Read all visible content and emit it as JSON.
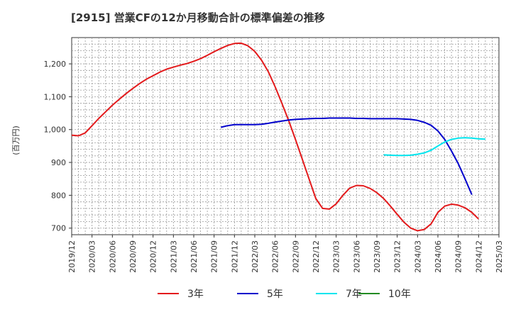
{
  "chart_data": {
    "type": "line",
    "title": "[2915]  営業CFの12か月移動合計の標準偏差の推移",
    "ylabel": "(百万円)",
    "xlabel": "",
    "ylim": [
      680,
      1280
    ],
    "yticks": [
      700,
      800,
      900,
      1000,
      1100,
      1200
    ],
    "ytick_labels": [
      "700",
      "800",
      "900",
      "1,000",
      "1,100",
      "1,200"
    ],
    "xrange": [
      "2019-12",
      "2025-03"
    ],
    "xtick_labels": [
      "2019/12",
      "2020/03",
      "2020/06",
      "2020/09",
      "2020/12",
      "2021/03",
      "2021/06",
      "2021/09",
      "2021/12",
      "2022/03",
      "2022/06",
      "2022/09",
      "2022/12",
      "2023/03",
      "2023/06",
      "2023/09",
      "2023/12",
      "2024/03",
      "2024/06",
      "2024/09",
      "2024/12",
      "2025/03"
    ],
    "grid": true,
    "legend_position": "bottom",
    "series": [
      {
        "name": "3年",
        "color": "#e31a1c",
        "points": [
          [
            "2019-12",
            983
          ],
          [
            "2020-01",
            981
          ],
          [
            "2020-02",
            990
          ],
          [
            "2020-03",
            1012
          ],
          [
            "2020-04",
            1034
          ],
          [
            "2020-05",
            1054
          ],
          [
            "2020-06",
            1074
          ],
          [
            "2020-07",
            1092
          ],
          [
            "2020-08",
            1109
          ],
          [
            "2020-09",
            1125
          ],
          [
            "2020-10",
            1140
          ],
          [
            "2020-11",
            1153
          ],
          [
            "2020-12",
            1164
          ],
          [
            "2021-01",
            1175
          ],
          [
            "2021-02",
            1184
          ],
          [
            "2021-03",
            1190
          ],
          [
            "2021-04",
            1196
          ],
          [
            "2021-05",
            1201
          ],
          [
            "2021-06",
            1208
          ],
          [
            "2021-07",
            1216
          ],
          [
            "2021-08",
            1226
          ],
          [
            "2021-09",
            1237
          ],
          [
            "2021-10",
            1247
          ],
          [
            "2021-11",
            1256
          ],
          [
            "2021-12",
            1262
          ],
          [
            "2022-01",
            1263
          ],
          [
            "2022-02",
            1255
          ],
          [
            "2022-03",
            1238
          ],
          [
            "2022-04",
            1211
          ],
          [
            "2022-05",
            1176
          ],
          [
            "2022-06",
            1130
          ],
          [
            "2022-07",
            1080
          ],
          [
            "2022-08",
            1027
          ],
          [
            "2022-09",
            970
          ],
          [
            "2022-10",
            910
          ],
          [
            "2022-11",
            850
          ],
          [
            "2022-12",
            790
          ],
          [
            "2023-01",
            760
          ],
          [
            "2023-02",
            758
          ],
          [
            "2023-03",
            774
          ],
          [
            "2023-04",
            800
          ],
          [
            "2023-05",
            822
          ],
          [
            "2023-06",
            830
          ],
          [
            "2023-07",
            829
          ],
          [
            "2023-08",
            821
          ],
          [
            "2023-09",
            808
          ],
          [
            "2023-10",
            790
          ],
          [
            "2023-11",
            767
          ],
          [
            "2023-12",
            742
          ],
          [
            "2024-01",
            718
          ],
          [
            "2024-02",
            700
          ],
          [
            "2024-03",
            692
          ],
          [
            "2024-04",
            696
          ],
          [
            "2024-05",
            713
          ],
          [
            "2024-06",
            748
          ],
          [
            "2024-07",
            767
          ],
          [
            "2024-08",
            773
          ],
          [
            "2024-09",
            770
          ],
          [
            "2024-10",
            762
          ],
          [
            "2024-11",
            748
          ],
          [
            "2024-12",
            728
          ]
        ]
      },
      {
        "name": "5年",
        "color": "#0000cc",
        "points": [
          [
            "2021-10",
            1007
          ],
          [
            "2021-11",
            1012
          ],
          [
            "2021-12",
            1015
          ],
          [
            "2022-01",
            1015
          ],
          [
            "2022-02",
            1015
          ],
          [
            "2022-03",
            1015
          ],
          [
            "2022-04",
            1016
          ],
          [
            "2022-05",
            1019
          ],
          [
            "2022-06",
            1023
          ],
          [
            "2022-07",
            1026
          ],
          [
            "2022-08",
            1029
          ],
          [
            "2022-09",
            1031
          ],
          [
            "2022-10",
            1032
          ],
          [
            "2022-11",
            1033
          ],
          [
            "2022-12",
            1034
          ],
          [
            "2023-01",
            1034
          ],
          [
            "2023-02",
            1035
          ],
          [
            "2023-03",
            1035
          ],
          [
            "2023-04",
            1035
          ],
          [
            "2023-05",
            1035
          ],
          [
            "2023-06",
            1034
          ],
          [
            "2023-07",
            1034
          ],
          [
            "2023-08",
            1033
          ],
          [
            "2023-09",
            1033
          ],
          [
            "2023-10",
            1033
          ],
          [
            "2023-11",
            1033
          ],
          [
            "2023-12",
            1033
          ],
          [
            "2024-01",
            1032
          ],
          [
            "2024-02",
            1031
          ],
          [
            "2024-03",
            1028
          ],
          [
            "2024-04",
            1022
          ],
          [
            "2024-05",
            1013
          ],
          [
            "2024-06",
            996
          ],
          [
            "2024-07",
            970
          ],
          [
            "2024-08",
            935
          ],
          [
            "2024-09",
            896
          ],
          [
            "2024-10",
            850
          ],
          [
            "2024-11",
            802
          ]
        ]
      },
      {
        "name": "7年",
        "color": "#00e5ee",
        "points": [
          [
            "2023-10",
            923
          ],
          [
            "2023-11",
            922
          ],
          [
            "2023-12",
            921
          ],
          [
            "2024-01",
            921
          ],
          [
            "2024-02",
            922
          ],
          [
            "2024-03",
            925
          ],
          [
            "2024-04",
            929
          ],
          [
            "2024-05",
            937
          ],
          [
            "2024-06",
            950
          ],
          [
            "2024-07",
            962
          ],
          [
            "2024-08",
            970
          ],
          [
            "2024-09",
            974
          ],
          [
            "2024-10",
            975
          ],
          [
            "2024-11",
            974
          ],
          [
            "2024-12",
            972
          ],
          [
            "2025-01",
            971
          ]
        ]
      },
      {
        "name": "10年",
        "color": "#228b22",
        "points": []
      }
    ]
  }
}
